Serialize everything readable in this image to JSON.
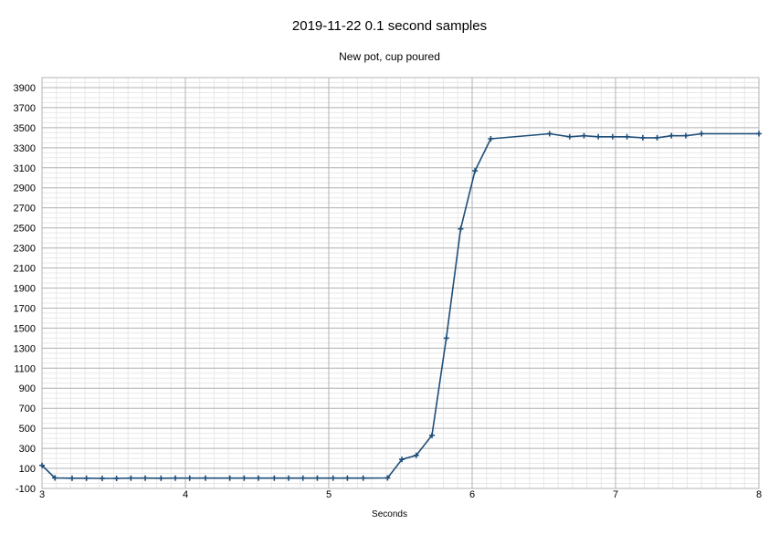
{
  "chart_data": {
    "type": "line",
    "title": "2019-11-22 0.1 second samples",
    "subtitle": "New pot, cup poured",
    "xlabel": "Seconds",
    "ylabel": "",
    "xlim": [
      3,
      8
    ],
    "ylim": [
      -100,
      4000
    ],
    "xticks": [
      "3",
      "4",
      "5",
      "6",
      "7",
      "8"
    ],
    "yticks": [
      "-100",
      "100",
      "300",
      "500",
      "700",
      "900",
      "1100",
      "1300",
      "1500",
      "1700",
      "1900",
      "2100",
      "2300",
      "2500",
      "2700",
      "2900",
      "3100",
      "3300",
      "3500",
      "3700",
      "3900"
    ],
    "grid": true,
    "series": [
      {
        "color": "#1f4e79",
        "marker": "plus",
        "x": [
          3.0,
          3.09,
          3.21,
          3.31,
          3.42,
          3.52,
          3.62,
          3.72,
          3.83,
          3.93,
          4.03,
          4.14,
          4.31,
          4.41,
          4.51,
          4.62,
          4.72,
          4.82,
          4.92,
          5.03,
          5.13,
          5.24,
          5.41,
          5.51,
          5.61,
          5.72,
          5.82,
          5.92,
          6.02,
          6.13,
          6.54,
          6.68,
          6.78,
          6.88,
          6.98,
          7.08,
          7.19,
          7.29,
          7.39,
          7.49,
          7.6,
          8.0
        ],
        "y": [
          130,
          5,
          2,
          2,
          0,
          0,
          3,
          3,
          2,
          3,
          3,
          3,
          3,
          3,
          3,
          3,
          3,
          3,
          3,
          3,
          3,
          3,
          5,
          190,
          230,
          430,
          1400,
          2490,
          3070,
          3390,
          3440,
          3410,
          3420,
          3410,
          3410,
          3410,
          3400,
          3400,
          3420,
          3420,
          3440,
          3440
        ]
      }
    ]
  }
}
